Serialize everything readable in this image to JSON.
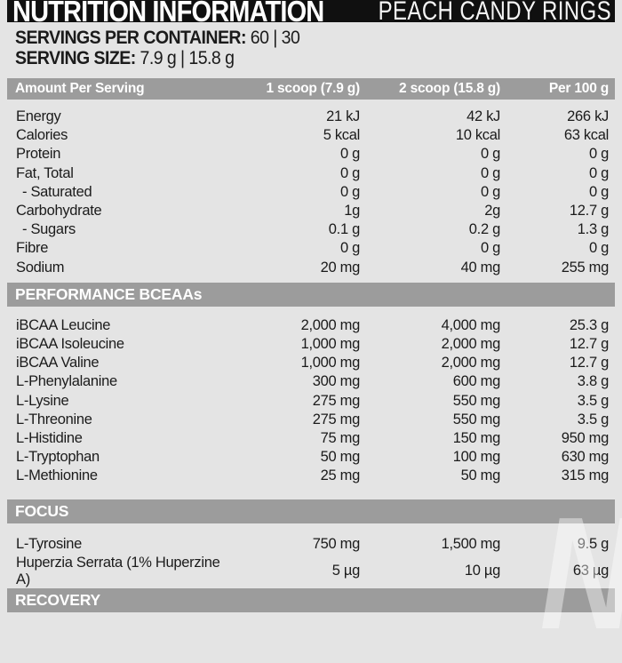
{
  "title_bar": {
    "title": "NUTRITION INFORMATION",
    "flavor": "PEACH CANDY RINGS"
  },
  "serving_info": {
    "container_label": "SERVINGS PER CONTAINER:",
    "container_value": "60 | 30",
    "size_label": "SERVING SIZE:",
    "size_value": "7.9 g | 15.8 g"
  },
  "columns": [
    "Amount Per Serving",
    "1 scoop (7.9 g)",
    "2 scoop (15.8 g)",
    "Per 100 g"
  ],
  "sections": [
    {
      "header": "",
      "rows": [
        {
          "name": "Energy",
          "scoop1": "21 kJ",
          "scoop2": "42 kJ",
          "per100": "266 kJ"
        },
        {
          "name": "Calories",
          "scoop1": "5 kcal",
          "scoop2": "10 kcal",
          "per100": "63 kcal"
        },
        {
          "name": "Protein",
          "scoop1": "0 g",
          "scoop2": "0 g",
          "per100": "0 g"
        },
        {
          "name": "Fat, Total",
          "scoop1": "0 g",
          "scoop2": "0 g",
          "per100": "0 g"
        },
        {
          "name": "- Saturated",
          "indent": true,
          "scoop1": "0 g",
          "scoop2": "0 g",
          "per100": "0 g"
        },
        {
          "name": "Carbohydrate",
          "scoop1": "1g",
          "scoop2": "2g",
          "per100": "12.7 g"
        },
        {
          "name": "- Sugars",
          "indent": true,
          "scoop1": "0.1 g",
          "scoop2": "0.2 g",
          "per100": "1.3 g"
        },
        {
          "name": "Fibre",
          "scoop1": "0 g",
          "scoop2": "0 g",
          "per100": "0 g"
        },
        {
          "name": "Sodium",
          "scoop1": "20 mg",
          "scoop2": "40 mg",
          "per100": "255 mg"
        }
      ]
    },
    {
      "header": "PERFORMANCE BCEAAs",
      "rows": [
        {
          "name": "iBCAA Leucine",
          "scoop1": "2,000 mg",
          "scoop2": "4,000 mg",
          "per100": "25.3 g"
        },
        {
          "name": "iBCAA Isoleucine",
          "scoop1": "1,000 mg",
          "scoop2": "2,000 mg",
          "per100": "12.7 g"
        },
        {
          "name": "iBCAA Valine",
          "scoop1": "1,000 mg",
          "scoop2": "2,000 mg",
          "per100": "12.7 g"
        },
        {
          "name": "L-Phenylalanine",
          "scoop1": "300 mg",
          "scoop2": "600 mg",
          "per100": "3.8 g"
        },
        {
          "name": "L-Lysine",
          "scoop1": "275 mg",
          "scoop2": "550 mg",
          "per100": "3.5 g"
        },
        {
          "name": "L-Threonine",
          "scoop1": "275 mg",
          "scoop2": "550 mg",
          "per100": "3.5 g"
        },
        {
          "name": "L-Histidine",
          "scoop1": "75 mg",
          "scoop2": "150 mg",
          "per100": "950 mg"
        },
        {
          "name": "L-Tryptophan",
          "scoop1": "50 mg",
          "scoop2": "100 mg",
          "per100": "630 mg"
        },
        {
          "name": "L-Methionine",
          "scoop1": "25 mg",
          "scoop2": "50 mg",
          "per100": "315 mg"
        }
      ]
    },
    {
      "header": "FOCUS",
      "rows": [
        {
          "name": "L-Tyrosine",
          "scoop1": "750 mg",
          "scoop2": "1,500 mg",
          "per100": "9.5 g"
        },
        {
          "name": "Huperzia Serrata (1% Huperzine A)",
          "scoop1": "5 µg",
          "scoop2": "10 µg",
          "per100": "63 µg"
        }
      ]
    },
    {
      "header": "RECOVERY",
      "rows": []
    }
  ],
  "watermark": {
    "letter": "N"
  },
  "colors": {
    "background": "#e4e4e4",
    "title_bar_bg": "#101010",
    "section_bar_bg": "#9c9c9c",
    "header_text": "#ffffff",
    "body_text": "#1b1b1b"
  }
}
